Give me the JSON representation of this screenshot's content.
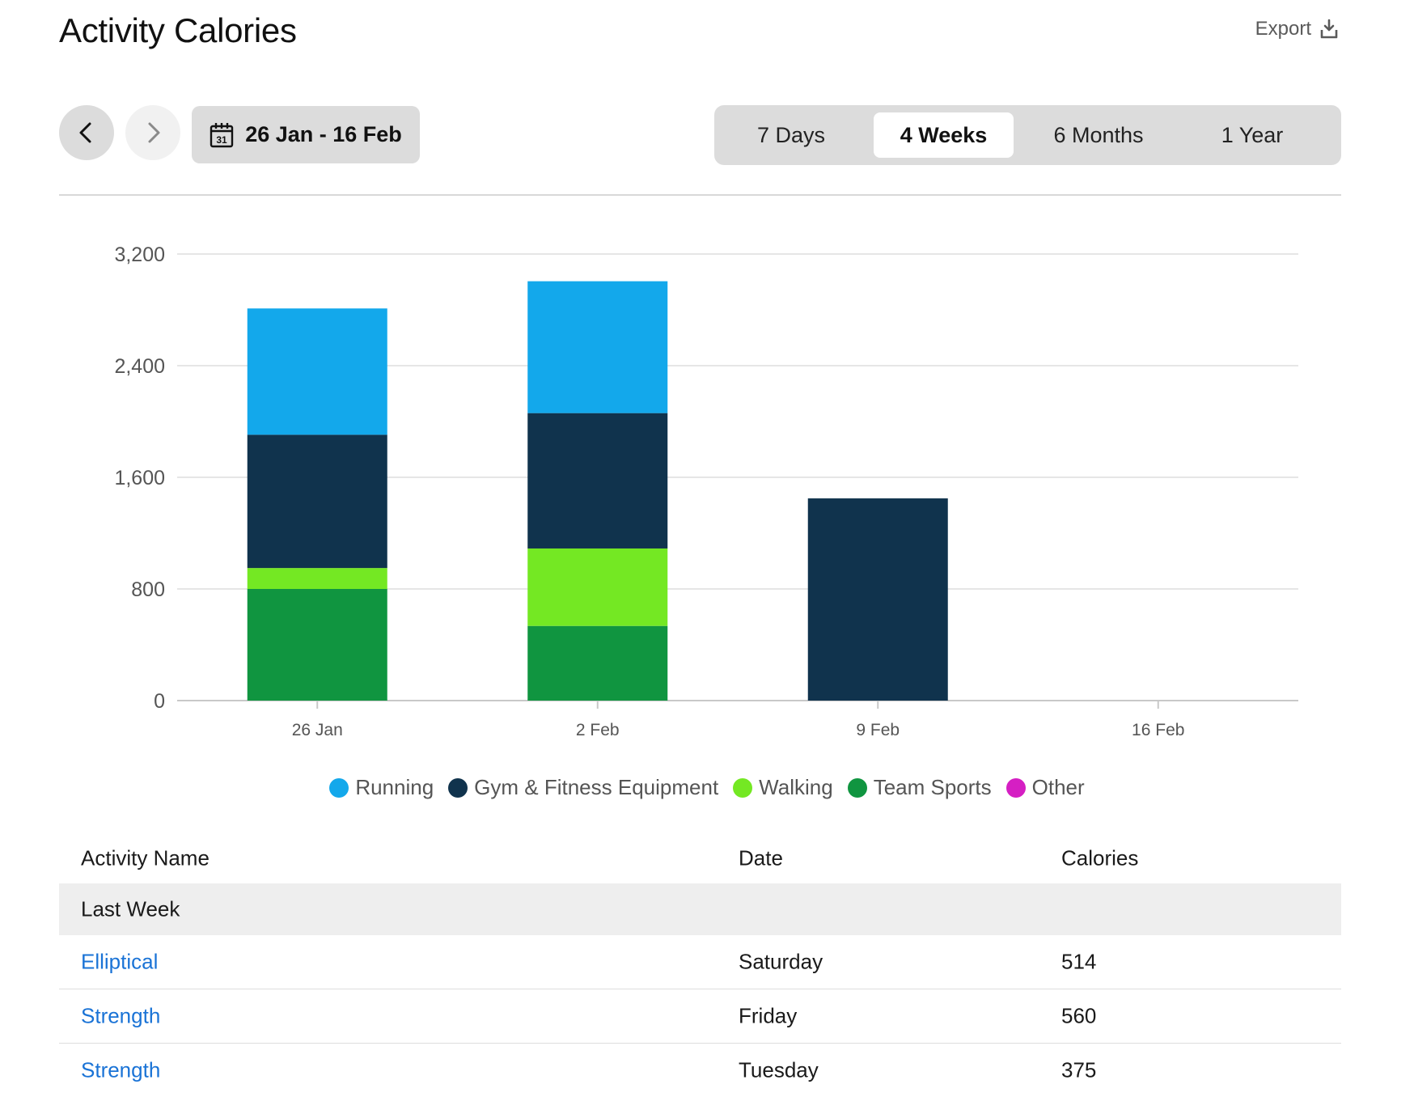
{
  "header": {
    "title": "Activity Calories",
    "export_label": "Export"
  },
  "icons": {
    "export": "export-icon",
    "prev": "chevron-left-icon",
    "next": "chevron-right-icon",
    "calendar": "calendar-icon",
    "calendar_day": "31"
  },
  "date_range": {
    "label": "26 Jan - 16 Feb"
  },
  "ranges": [
    {
      "label": "7 Days",
      "active": false
    },
    {
      "label": "4 Weeks",
      "active": true
    },
    {
      "label": "6 Months",
      "active": false
    },
    {
      "label": "1 Year",
      "active": false
    }
  ],
  "chart_data": {
    "type": "bar",
    "stacked": true,
    "categories": [
      "26 Jan",
      "2 Feb",
      "9 Feb",
      "16 Feb"
    ],
    "series": [
      {
        "name": "Team Sports",
        "color": "#109540",
        "values": [
          800,
          535,
          0,
          0
        ]
      },
      {
        "name": "Walking",
        "color": "#74e823",
        "values": [
          150,
          555,
          0,
          0
        ]
      },
      {
        "name": "Gym & Fitness Equipment",
        "color": "#10334d",
        "values": [
          955,
          970,
          1449,
          0
        ]
      },
      {
        "name": "Running",
        "color": "#13a8eb",
        "values": [
          905,
          945,
          0,
          0
        ]
      },
      {
        "name": "Other",
        "color": "#d51fc3",
        "values": [
          0,
          0,
          0,
          0
        ]
      }
    ],
    "legend_order": [
      "Running",
      "Gym & Fitness Equipment",
      "Walking",
      "Team Sports",
      "Other"
    ],
    "y_ticks": [
      "0",
      "800",
      "1,600",
      "2,400",
      "3,200"
    ],
    "ylim": [
      0,
      3200
    ],
    "grid": true,
    "legend_position": "bottom"
  },
  "table": {
    "headers": {
      "name": "Activity Name",
      "date": "Date",
      "calories": "Calories"
    },
    "group_label": "Last Week",
    "rows": [
      {
        "name": "Elliptical",
        "date": "Saturday",
        "calories": "514"
      },
      {
        "name": "Strength",
        "date": "Friday",
        "calories": "560"
      },
      {
        "name": "Strength",
        "date": "Tuesday",
        "calories": "375"
      }
    ]
  }
}
